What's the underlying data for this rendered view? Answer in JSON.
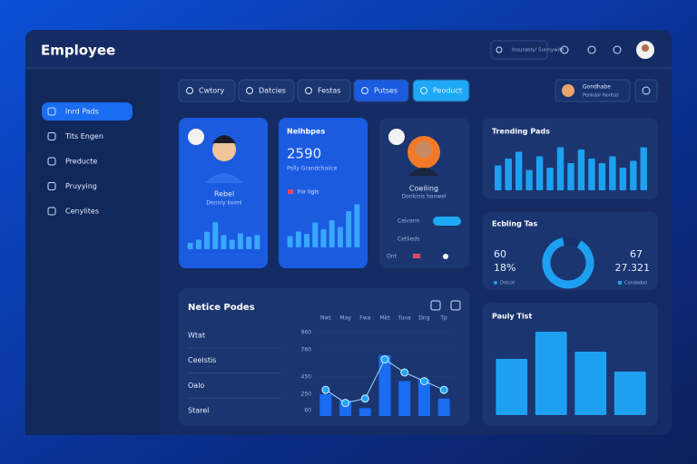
{
  "header": {
    "title": "Employee",
    "status": "Insurably/ Sunnywith"
  },
  "sidebar": [
    "Inrd Pads",
    "Tits Engen",
    "Preducte",
    "Pruyying",
    "Cenylites"
  ],
  "tabs": [
    "Cwtory",
    "Datcies",
    "Festas",
    "Putses",
    "Peoduct"
  ],
  "user": {
    "name": "Gondhabe",
    "role": "Penkdar Horitos"
  },
  "cards": {
    "profile": {
      "name": "Rebel",
      "role": "Denniy koiml",
      "ylim": [
        0,
        100
      ],
      "bars": [
        20,
        30,
        55,
        85,
        45,
        30,
        50,
        40,
        45
      ]
    },
    "stats": {
      "title": "Nelhbpes",
      "value": "2590",
      "subtitle": "Polly Grandchaiice",
      "note": "For ligls",
      "ylim": [
        0,
        100
      ],
      "bars": [
        25,
        35,
        30,
        55,
        40,
        60,
        45,
        80,
        95
      ]
    },
    "profile2": {
      "name": "Coeiling",
      "role": "Donkinis banwel",
      "rows": [
        "Celvann",
        "Cetlieds",
        "Ont"
      ]
    },
    "trending": {
      "title": "Trending Pads",
      "ylim": [
        0,
        100
      ],
      "bars": [
        55,
        70,
        85,
        45,
        75,
        50,
        95,
        60,
        90,
        70,
        60,
        75,
        50,
        65,
        95
      ]
    },
    "donut": {
      "title": "Ecbling Tas",
      "left_value": "60",
      "left_percent": "18%",
      "left_legend": "Dnicot",
      "right_value": "67",
      "right_number": "27.321",
      "right_legend": "Condadon",
      "range": [
        0,
        100
      ],
      "value": 88
    },
    "notice": {
      "title": "Netice Podes",
      "labels": [
        "Wtat",
        "Ceelstis",
        "Oalo",
        "Starel"
      ],
      "categories": [
        "Nwt",
        "May",
        "Fwa",
        "Mkt",
        "Tuna",
        "Dng",
        "Tp"
      ],
      "bars": [
        250,
        180,
        90,
        700,
        400,
        420,
        200
      ],
      "line": [
        300,
        150,
        200,
        650,
        500,
        400,
        300
      ],
      "ylim": [
        0,
        1000
      ],
      "yticks": [
        60,
        250,
        450,
        760,
        960
      ]
    },
    "pauly": {
      "title": "Pauly Tist",
      "ylim": [
        0,
        100
      ],
      "bars": [
        62,
        92,
        70,
        48
      ]
    }
  }
}
